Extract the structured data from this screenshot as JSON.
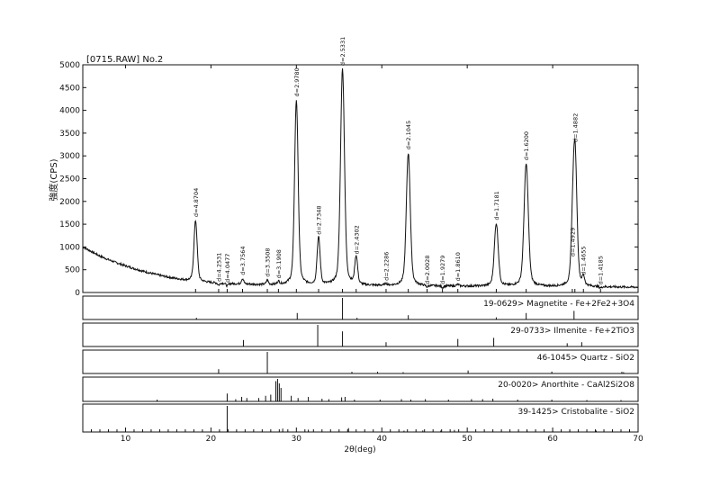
{
  "chart_data": {
    "type": "line",
    "title": "[0715.RAW] No.2",
    "xlabel": "2θ(deg)",
    "ylabel": "強度(CPS)",
    "xlim": [
      5,
      70
    ],
    "ylim": [
      0,
      5000
    ],
    "x_ticks": [
      10,
      20,
      30,
      40,
      50,
      60,
      70
    ],
    "y_ticks": [
      0,
      500,
      1000,
      1500,
      2000,
      2500,
      3000,
      3500,
      4000,
      4500,
      5000
    ],
    "grid": false,
    "background_points": [
      [
        5,
        1000
      ],
      [
        6,
        900
      ],
      [
        7,
        800
      ],
      [
        8,
        720
      ],
      [
        9,
        650
      ],
      [
        10,
        585
      ],
      [
        11,
        525
      ],
      [
        12,
        470
      ],
      [
        13,
        420
      ],
      [
        14,
        375
      ],
      [
        15,
        335
      ],
      [
        16,
        300
      ],
      [
        17,
        270
      ],
      [
        18,
        245
      ],
      [
        20,
        215
      ],
      [
        22,
        195
      ],
      [
        24,
        180
      ],
      [
        26,
        170
      ],
      [
        28,
        165
      ],
      [
        30,
        160
      ],
      [
        35,
        150
      ],
      [
        40,
        145
      ],
      [
        45,
        140
      ],
      [
        50,
        135
      ],
      [
        55,
        130
      ],
      [
        60,
        125
      ],
      [
        65,
        120
      ],
      [
        70,
        115
      ]
    ],
    "peaks": [
      {
        "x": 18.2,
        "y": 1580,
        "label": "d=4.8704",
        "w": 0.18
      },
      {
        "x": 20.9,
        "y": 160,
        "label": "d=4.2531",
        "w": 0.12
      },
      {
        "x": 21.9,
        "y": 140,
        "label": "d=4.0477",
        "w": 0.12
      },
      {
        "x": 23.7,
        "y": 300,
        "label": "d=3.7564",
        "w": 0.13
      },
      {
        "x": 26.6,
        "y": 260,
        "label": "d=3.3508",
        "w": 0.12
      },
      {
        "x": 27.9,
        "y": 230,
        "label": "d=3.1908",
        "w": 0.12
      },
      {
        "x": 30.0,
        "y": 4220,
        "label": "d=2.9780",
        "w": 0.2
      },
      {
        "x": 32.6,
        "y": 1190,
        "label": "d=2.7348",
        "w": 0.17
      },
      {
        "x": 35.4,
        "y": 4900,
        "label": "d=2.5331",
        "w": 0.22
      },
      {
        "x": 37.0,
        "y": 760,
        "label": "d=2.4302",
        "w": 0.16
      },
      {
        "x": 40.5,
        "y": 180,
        "label": "d=2.2286",
        "w": 0.14
      },
      {
        "x": 43.1,
        "y": 3060,
        "label": "d=2.1045",
        "w": 0.22
      },
      {
        "x": 45.3,
        "y": 100,
        "label": "d=2.0028",
        "w": 0.12
      },
      {
        "x": 47.1,
        "y": 100,
        "label": "d=1.9279",
        "w": 0.12
      },
      {
        "x": 48.9,
        "y": 170,
        "label": "d=1.8610",
        "w": 0.14
      },
      {
        "x": 53.4,
        "y": 1510,
        "label": "d=1.7181",
        "w": 0.22
      },
      {
        "x": 56.9,
        "y": 2820,
        "label": "d=1.6200",
        "w": 0.24
      },
      {
        "x": 62.3,
        "y": 710,
        "label": "d=1.4929",
        "w": 0.16
      },
      {
        "x": 62.6,
        "y": 3220,
        "label": "d=1.4882",
        "w": 0.22
      },
      {
        "x": 63.6,
        "y": 300,
        "label": "d=1.4655",
        "w": 0.14
      },
      {
        "x": 65.6,
        "y": 90,
        "label": "d=1.4185",
        "w": 0.14
      }
    ],
    "reference_patterns": [
      {
        "name": "19-0629> Magnetite - Fe+2Fe2+3O4",
        "lines": [
          [
            18.3,
            8
          ],
          [
            30.1,
            30
          ],
          [
            35.4,
            100
          ],
          [
            37.1,
            8
          ],
          [
            43.1,
            20
          ],
          [
            53.4,
            10
          ],
          [
            56.9,
            30
          ],
          [
            62.5,
            40
          ]
        ]
      },
      {
        "name": "29-0733> Ilmenite - Fe+2TiO3",
        "lines": [
          [
            23.8,
            30
          ],
          [
            32.5,
            100
          ],
          [
            35.4,
            70
          ],
          [
            40.5,
            20
          ],
          [
            48.9,
            35
          ],
          [
            53.1,
            40
          ],
          [
            61.7,
            15
          ],
          [
            63.4,
            20
          ]
        ]
      },
      {
        "name": "46-1045> Quartz - SiO2",
        "lines": [
          [
            20.9,
            20
          ],
          [
            26.6,
            100
          ],
          [
            36.5,
            8
          ],
          [
            39.5,
            8
          ],
          [
            42.5,
            6
          ],
          [
            50.1,
            14
          ],
          [
            59.9,
            9
          ],
          [
            68.1,
            8
          ],
          [
            68.3,
            6
          ]
        ]
      },
      {
        "name": "20-0020> Anorthite - CaAl2Si2O8",
        "lines": [
          [
            13.7,
            8
          ],
          [
            21.9,
            35
          ],
          [
            22.9,
            10
          ],
          [
            23.6,
            20
          ],
          [
            24.2,
            15
          ],
          [
            25.6,
            15
          ],
          [
            26.4,
            25
          ],
          [
            27.0,
            30
          ],
          [
            27.6,
            90
          ],
          [
            27.8,
            100
          ],
          [
            28.0,
            80
          ],
          [
            28.2,
            60
          ],
          [
            29.4,
            25
          ],
          [
            30.2,
            15
          ],
          [
            31.4,
            20
          ],
          [
            33.0,
            12
          ],
          [
            33.8,
            10
          ],
          [
            35.3,
            18
          ],
          [
            35.7,
            20
          ],
          [
            36.8,
            8
          ],
          [
            39.8,
            8
          ],
          [
            42.3,
            10
          ],
          [
            43.4,
            8
          ],
          [
            45.1,
            10
          ],
          [
            47.8,
            8
          ],
          [
            50.5,
            10
          ],
          [
            51.8,
            10
          ],
          [
            53.0,
            12
          ],
          [
            55.9,
            8
          ],
          [
            59.9,
            8
          ],
          [
            64.0,
            6
          ],
          [
            68.0,
            6
          ]
        ]
      },
      {
        "name": "39-1425> Cristobalite - SiO2",
        "lines": [
          [
            21.9,
            100
          ],
          [
            28.4,
            13
          ],
          [
            31.4,
            9
          ],
          [
            36.1,
            15
          ],
          [
            42.6,
            4
          ],
          [
            44.8,
            6
          ],
          [
            46.9,
            4
          ],
          [
            48.5,
            8
          ],
          [
            57.0,
            6
          ],
          [
            60.0,
            5
          ],
          [
            62.0,
            4
          ],
          [
            65.1,
            5
          ]
        ]
      }
    ]
  }
}
